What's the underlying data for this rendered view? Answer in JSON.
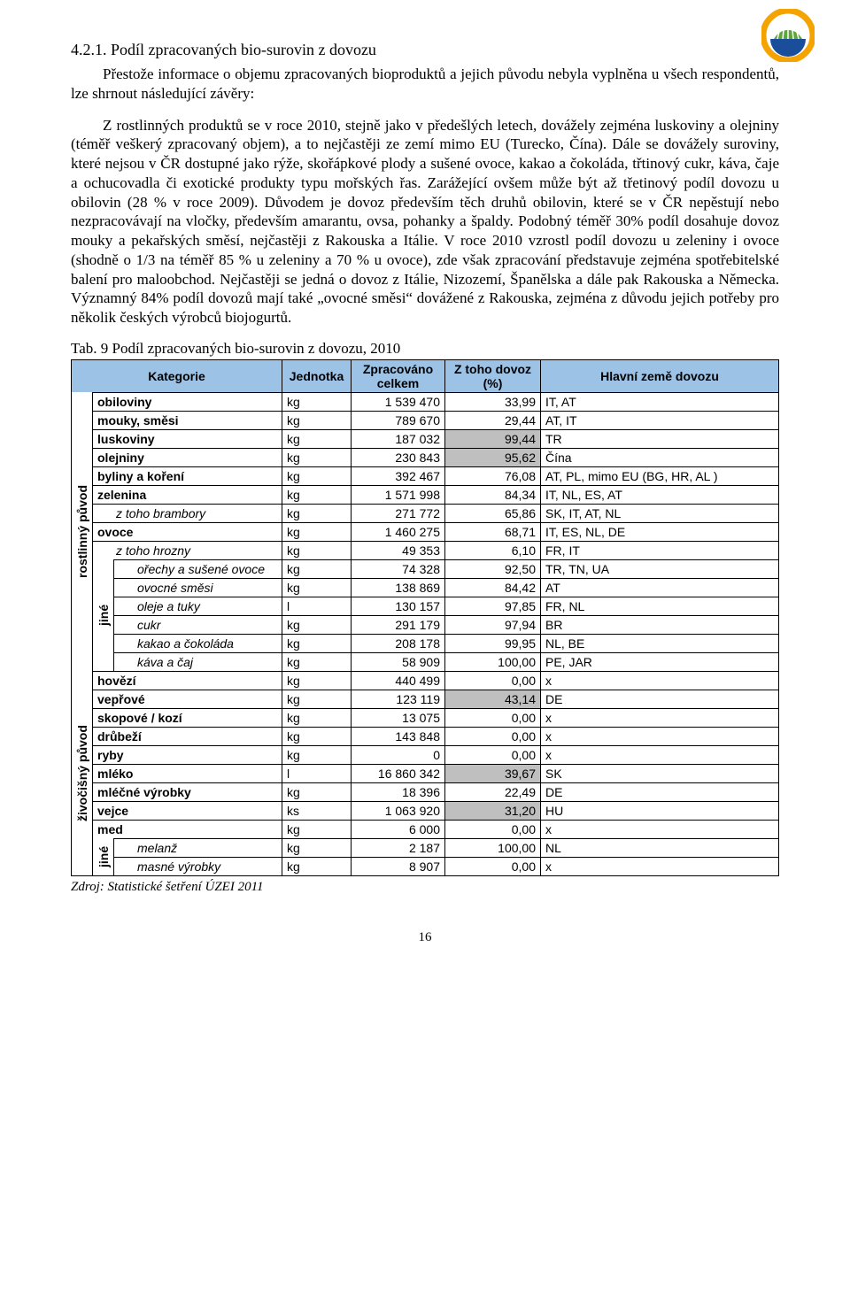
{
  "logo": {
    "outer_color": "#f5a300",
    "inner_color": "#1a4e9b",
    "stripe_color": "#ffffff",
    "green_color": "#5ea53a"
  },
  "section_number": "4.2.1. Podíl zpracovaných bio-surovin z dovozu",
  "paragraph": "Přestože informace o objemu zpracovaných bioproduktů a jejich původu nebyla vyplněna u všech respondentů, lze shrnout následující závěry:",
  "body": "Z rostlinných produktů se v roce 2010, stejně jako v předešlých letech, dovážely zejména luskoviny a olejniny (téměř veškerý zpracovaný objem), a to nejčastěji ze zemí mimo EU (Turecko, Čína). Dále se dovážely suroviny, které nejsou v ČR dostupné jako rýže, skořápkové plody a sušené ovoce, kakao a čokoláda, třtinový cukr, káva, čaje a ochucovadla či exotické produkty typu mořských řas. Zarážející ovšem může být až třetinový podíl dovozu u obilovin (28 % v roce 2009). Důvodem je dovoz především těch druhů obilovin, které se v ČR nepěstují nebo nezpracovávají na vločky, především amarantu, ovsa, pohanky a špaldy. Podobný téměř 30% podíl dosahuje dovoz mouky a pekařských směsí, nejčastěji z Rakouska a Itálie. V roce 2010 vzrostl podíl dovozu u zeleniny i ovoce (shodně o 1/3 na téměř 85 % u zeleniny a 70 % u ovoce), zde však zpracování představuje zejména spotřebitelské balení pro maloobchod. Nejčastěji se jedná o dovoz z Itálie, Nizozemí, Španělska a dále pak Rakouska a Německa. Významný 84% podíl dovozů mají také „ovocné směsi“ dovážené z Rakouska, zejména z důvodu jejich potřeby pro několik českých výrobců biojogurtů.",
  "table_caption": "Tab. 9 Podíl zpracovaných bio-surovin z dovozu, 2010",
  "table": {
    "headers": {
      "category": "Kategorie",
      "unit": "Jednotka",
      "processed": "Zpracováno celkem",
      "import_pct": "Z toho dovoz (%)",
      "countries": "Hlavní země dovozu"
    },
    "side_headers": {
      "plant": "rostlinný původ",
      "animal": "živočišný původ",
      "other": "jiné"
    },
    "highlight_color": "#bfbfbf",
    "rows_plant_main": [
      {
        "name": "obiloviny",
        "unit": "kg",
        "processed": "1 539 470",
        "pct": "33,99",
        "hl": false,
        "countries": "IT, AT"
      },
      {
        "name": "mouky, směsi",
        "unit": "kg",
        "processed": "789 670",
        "pct": "29,44",
        "hl": false,
        "countries": "AT, IT"
      },
      {
        "name": "luskoviny",
        "unit": "kg",
        "processed": "187 032",
        "pct": "99,44",
        "hl": true,
        "countries": "TR"
      },
      {
        "name": "olejniny",
        "unit": "kg",
        "processed": "230 843",
        "pct": "95,62",
        "hl": true,
        "countries": "Čína"
      },
      {
        "name": "byliny a koření",
        "unit": "kg",
        "processed": "392 467",
        "pct": "76,08",
        "hl": false,
        "countries": "AT, PL, mimo EU (BG, HR, AL )"
      },
      {
        "name": "zelenina",
        "unit": "kg",
        "processed": "1 571 998",
        "pct": "84,34",
        "hl": false,
        "countries": "IT, NL, ES, AT"
      },
      {
        "name": "z toho brambory",
        "indent": true,
        "unit": "kg",
        "processed": "271 772",
        "pct": "65,86",
        "hl": false,
        "countries": "SK, IT, AT, NL"
      },
      {
        "name": "ovoce",
        "unit": "kg",
        "processed": "1 460 275",
        "pct": "68,71",
        "hl": false,
        "countries": "IT, ES, NL, DE"
      },
      {
        "name": "z toho hrozny",
        "indent": true,
        "unit": "kg",
        "processed": "49 353",
        "pct": "6,10",
        "hl": false,
        "countries": "FR, IT"
      }
    ],
    "rows_plant_other": [
      {
        "name": "ořechy a sušené ovoce",
        "indent": true,
        "unit": "kg",
        "processed": "74 328",
        "pct": "92,50",
        "hl": false,
        "countries": "TR, TN, UA"
      },
      {
        "name": "ovocné směsi",
        "indent": true,
        "unit": "kg",
        "processed": "138 869",
        "pct": "84,42",
        "hl": false,
        "countries": "AT"
      },
      {
        "name": "oleje a tuky",
        "indent": true,
        "unit": "l",
        "processed": "130 157",
        "pct": "97,85",
        "hl": false,
        "countries": "FR, NL"
      },
      {
        "name": "cukr",
        "indent": true,
        "unit": "kg",
        "processed": "291 179",
        "pct": "97,94",
        "hl": false,
        "countries": "BR"
      },
      {
        "name": "kakao a čokoláda",
        "indent": true,
        "unit": "kg",
        "processed": "208 178",
        "pct": "99,95",
        "hl": false,
        "countries": "NL, BE"
      },
      {
        "name": "káva a čaj",
        "indent": true,
        "unit": "kg",
        "processed": "58 909",
        "pct": "100,00",
        "hl": false,
        "countries": "PE, JAR"
      }
    ],
    "rows_animal_main": [
      {
        "name": "hovězí",
        "unit": "kg",
        "processed": "440 499",
        "pct": "0,00",
        "hl": false,
        "countries": "x"
      },
      {
        "name": "vepřové",
        "unit": "kg",
        "processed": "123 119",
        "pct": "43,14",
        "hl": true,
        "countries": "DE"
      },
      {
        "name": "skopové / kozí",
        "unit": "kg",
        "processed": "13 075",
        "pct": "0,00",
        "hl": false,
        "countries": "x"
      },
      {
        "name": "drůbeží",
        "unit": "kg",
        "processed": "143 848",
        "pct": "0,00",
        "hl": false,
        "countries": "x"
      },
      {
        "name": "ryby",
        "unit": "kg",
        "processed": "0",
        "pct": "0,00",
        "hl": false,
        "countries": "x"
      },
      {
        "name": "mléko",
        "unit": "l",
        "processed": "16 860 342",
        "pct": "39,67",
        "hl": true,
        "countries": "SK"
      },
      {
        "name": "mléčné výrobky",
        "unit": "kg",
        "processed": "18 396",
        "pct": "22,49",
        "hl": false,
        "countries": "DE"
      },
      {
        "name": "vejce",
        "unit": "ks",
        "processed": "1 063 920",
        "pct": "31,20",
        "hl": true,
        "countries": "HU"
      },
      {
        "name": "med",
        "unit": "kg",
        "processed": "6 000",
        "pct": "0,00",
        "hl": false,
        "countries": "x"
      }
    ],
    "rows_animal_other": [
      {
        "name": "melanž",
        "indent": true,
        "unit": "kg",
        "processed": "2 187",
        "pct": "100,00",
        "hl": false,
        "countries": "NL"
      },
      {
        "name": "masné výrobky",
        "indent": true,
        "unit": "kg",
        "processed": "8 907",
        "pct": "0,00",
        "hl": false,
        "countries": "x"
      }
    ]
  },
  "source": "Zdroj: Statistické šetření ÚZEI 2011",
  "page_number": "16"
}
